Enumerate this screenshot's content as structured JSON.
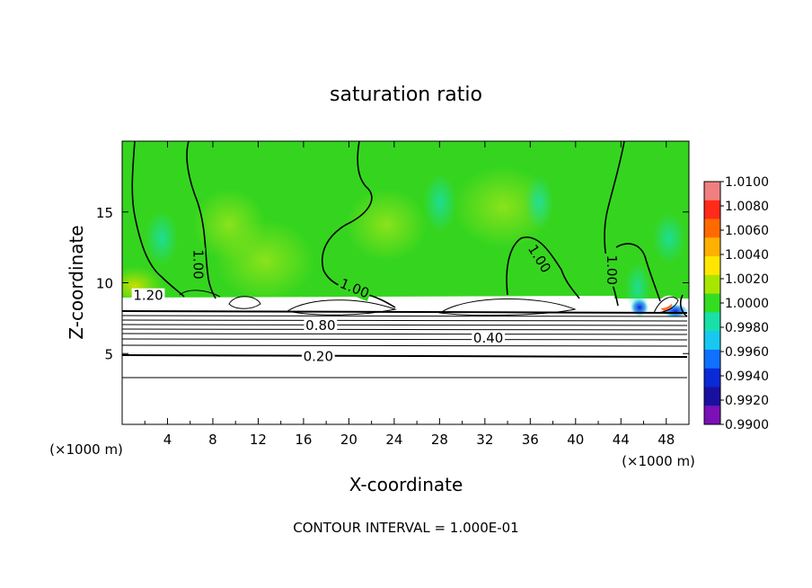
{
  "chart_data": {
    "type": "heatmap",
    "title": "saturation ratio",
    "xlabel": "X-coordinate",
    "ylabel": "Z-coordinate",
    "x_unit_left": "(×1000 m)",
    "x_unit_right": "(×1000 m)",
    "xlim": [
      0,
      50
    ],
    "ylim": [
      0,
      20
    ],
    "x_ticks": [
      4,
      8,
      12,
      16,
      20,
      24,
      28,
      32,
      36,
      40,
      44,
      48
    ],
    "x_tick_labels": [
      "4",
      "8",
      "12",
      "16",
      "20",
      "24",
      "28",
      "32",
      "36",
      "40",
      "44",
      "48"
    ],
    "y_ticks": [
      5,
      10,
      15
    ],
    "y_tick_labels": [
      "5",
      "10",
      "15"
    ],
    "colorbar": {
      "min": 0.99,
      "max": 1.01,
      "labels": [
        "1.0100",
        "1.0080",
        "1.0060",
        "1.0040",
        "1.0020",
        "1.0000",
        "0.9980",
        "0.9960",
        "0.9940",
        "0.9920",
        "0.9900"
      ],
      "colors": [
        "#f08080",
        "#ff2a1a",
        "#ff6a00",
        "#ffb000",
        "#ffe600",
        "#a8e600",
        "#33dd22",
        "#18e0a8",
        "#18c8f0",
        "#1070ff",
        "#0a2ad8",
        "#1a10a0",
        "#7a10b8"
      ]
    },
    "contour_labels": [
      {
        "text": "1.00",
        "x": 6.7,
        "z": 11.3,
        "rotate": 90
      },
      {
        "text": "1.20",
        "x": 2.3,
        "z": 9.1,
        "rotate": 0
      },
      {
        "text": "1.00",
        "x": 20.5,
        "z": 9.6,
        "rotate": 22
      },
      {
        "text": "0.80",
        "x": 17.5,
        "z": 7.0,
        "rotate": 0
      },
      {
        "text": "0.40",
        "x": 32.3,
        "z": 6.1,
        "rotate": 0
      },
      {
        "text": "0.20",
        "x": 17.3,
        "z": 4.8,
        "rotate": 0
      },
      {
        "text": "1.00",
        "x": 36.8,
        "z": 11.7,
        "rotate": 58
      },
      {
        "text": "1.00",
        "x": 43.2,
        "z": 10.9,
        "rotate": 90
      }
    ],
    "grid": false,
    "legend": "colorbar-right"
  },
  "footer": "CONTOUR INTERVAL = 1.000E-01",
  "colors": {
    "field_green": "#35d51f",
    "cloud_white": "#ffffff",
    "contour": "#000000"
  }
}
